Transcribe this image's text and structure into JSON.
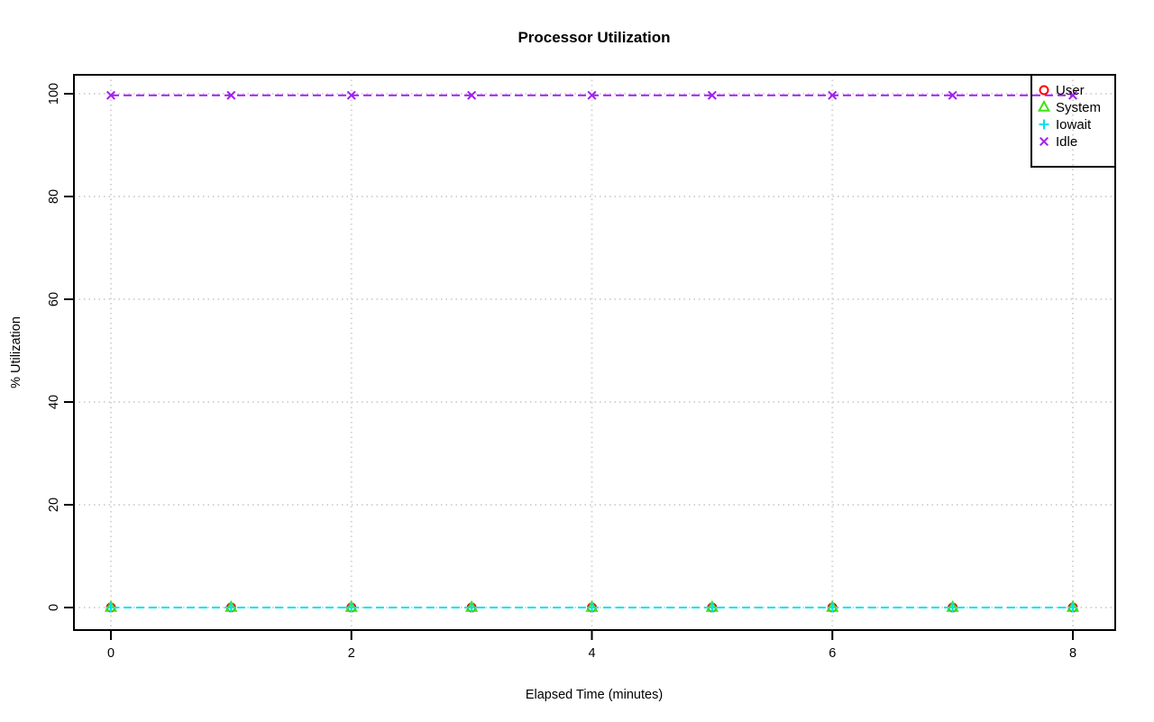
{
  "chart_data": {
    "type": "line",
    "title": "Processor Utilization",
    "xlabel": "Elapsed Time (minutes)",
    "ylabel": "% Utilization",
    "xlim": [
      0,
      8
    ],
    "ylim": [
      0,
      100
    ],
    "xticks": [
      0,
      2,
      4,
      6,
      8
    ],
    "yticks": [
      0,
      20,
      40,
      60,
      80,
      100
    ],
    "grid": {
      "style": "dotted",
      "color": "#d3d3d3",
      "at": "tick-positions"
    },
    "x": [
      0,
      1,
      2,
      3,
      4,
      5,
      6,
      7,
      8
    ],
    "series": [
      {
        "name": "User",
        "color": "#ff0000",
        "marker": "circle",
        "line": "dashed",
        "values": [
          0,
          0,
          0,
          0,
          0,
          0,
          0,
          0,
          0
        ]
      },
      {
        "name": "System",
        "color": "#3fe211",
        "marker": "triangle",
        "line": "dashed",
        "values": [
          0,
          0,
          0,
          0,
          0,
          0,
          0,
          0,
          0
        ]
      },
      {
        "name": "Iowait",
        "color": "#00e0ee",
        "marker": "plus",
        "line": "dashed",
        "values": [
          0,
          0,
          0,
          0,
          0,
          0,
          0,
          0,
          0
        ]
      },
      {
        "name": "Idle",
        "color": "#a020f0",
        "marker": "x",
        "line": "dashed",
        "values": [
          99.7,
          99.7,
          99.7,
          99.7,
          99.7,
          99.7,
          99.7,
          99.7,
          99.7
        ]
      }
    ],
    "legend": {
      "position": "topright",
      "labels": [
        "User",
        "System",
        "Iowait",
        "Idle"
      ]
    }
  }
}
